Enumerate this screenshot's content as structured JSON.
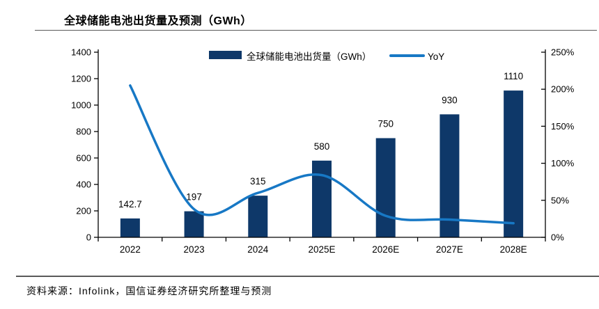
{
  "title": "全球储能电池出货量及预测（GWh）",
  "source": "资料来源：Infolink，国信证券经济研究所整理与预测",
  "legend": {
    "bar_label": "全球储能电池出货量（GWh）",
    "line_label": "YoY"
  },
  "colors": {
    "bar": "#0E3869",
    "line": "#1778C5",
    "axis": "#000000",
    "text": "#000000"
  },
  "chart_data": {
    "type": "bar",
    "title": "全球储能电池出货量及预测（GWh）",
    "categories": [
      "2022",
      "2023",
      "2024",
      "2025E",
      "2026E",
      "2027E",
      "2028E"
    ],
    "series": [
      {
        "name": "全球储能电池出货量（GWh）",
        "type": "bar",
        "axis": "left",
        "values": [
          142.7,
          197,
          315,
          580,
          750,
          930,
          1110
        ]
      },
      {
        "name": "YoY",
        "type": "line",
        "axis": "right",
        "unit": "%",
        "values": [
          205,
          38,
          60,
          84,
          29,
          24,
          19
        ]
      }
    ],
    "data_labels": [
      "142.7",
      "197",
      "315",
      "580",
      "750",
      "930",
      "1110"
    ],
    "left_axis": {
      "min": 0,
      "max": 1400,
      "step": 200
    },
    "right_axis": {
      "min": 0,
      "max": 250,
      "step": 50,
      "suffix": "%"
    },
    "grid": false,
    "legend_position": "top",
    "smooth_line": true
  }
}
